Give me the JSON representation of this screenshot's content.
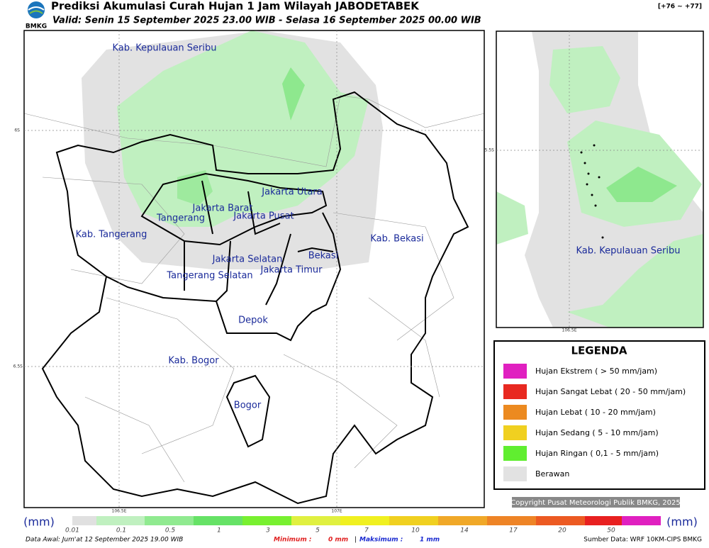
{
  "header": {
    "logo": "BMKG",
    "title": "Prediksi Akumulasi Curah Hujan 1 Jam Wilayah JABODETABEK",
    "subtitle": "Valid: Senin 15 September 2025 23.00 WIB - Selasa 16 September 2025 00.00 WIB",
    "code": "[+76 ~ +77]"
  },
  "main_map": {
    "labels": [
      "Kab. Kepulauan Seribu",
      "Jakarta Utara",
      "Jakarta Barat",
      "Jakarta Pusat",
      "Tangerang",
      "Kab. Tangerang",
      "Kab. Bekasi",
      "Jakarta Selatan",
      "Bekasi",
      "Tangerang Selatan",
      "Jakarta Timur",
      "Depok",
      "Kab. Bogor",
      "Bogor"
    ],
    "lat_labels": [
      "6S",
      "6.5S"
    ],
    "lon_labels": [
      "106.5E",
      "107E"
    ]
  },
  "inset_map": {
    "labels": [
      "Kab. Kepulauan Seribu"
    ],
    "lat_labels": [
      "5.5S"
    ],
    "lon_labels": [
      "106.5E"
    ]
  },
  "legend": {
    "title": "LEGENDA",
    "items": [
      "Hujan Ekstrem ( > 50 mm/jam)",
      "Hujan Sangat Lebat ( 20 - 50 mm/jam)",
      "Hujan Lebat ( 10 - 20 mm/jam)",
      "Hujan Sedang ( 5 - 10 mm/jam)",
      "Hujan Ringan ( 0,1 - 5 mm/jam)",
      "Berawan"
    ]
  },
  "copyright": "Copyright Pusat Meteorologi Publik BMKG, 2025",
  "colorbar": {
    "unit_left": "(mm)",
    "unit_right": "(mm)",
    "ticks": [
      "0.01",
      "0.1",
      "0.5",
      "1",
      "3",
      "5",
      "7",
      "10",
      "14",
      "17",
      "20",
      "50"
    ]
  },
  "footer": {
    "data_awal": "Data Awal: Jum'at 12 September 2025 19.00 WIB",
    "minimum_label": "Minimum :",
    "minimum_value": "0 mm",
    "separator": "|",
    "maximum_label": "Maksimum :",
    "maximum_value": "1 mm",
    "source": "Sumber Data: WRF 10KM-CIPS BMKG"
  }
}
